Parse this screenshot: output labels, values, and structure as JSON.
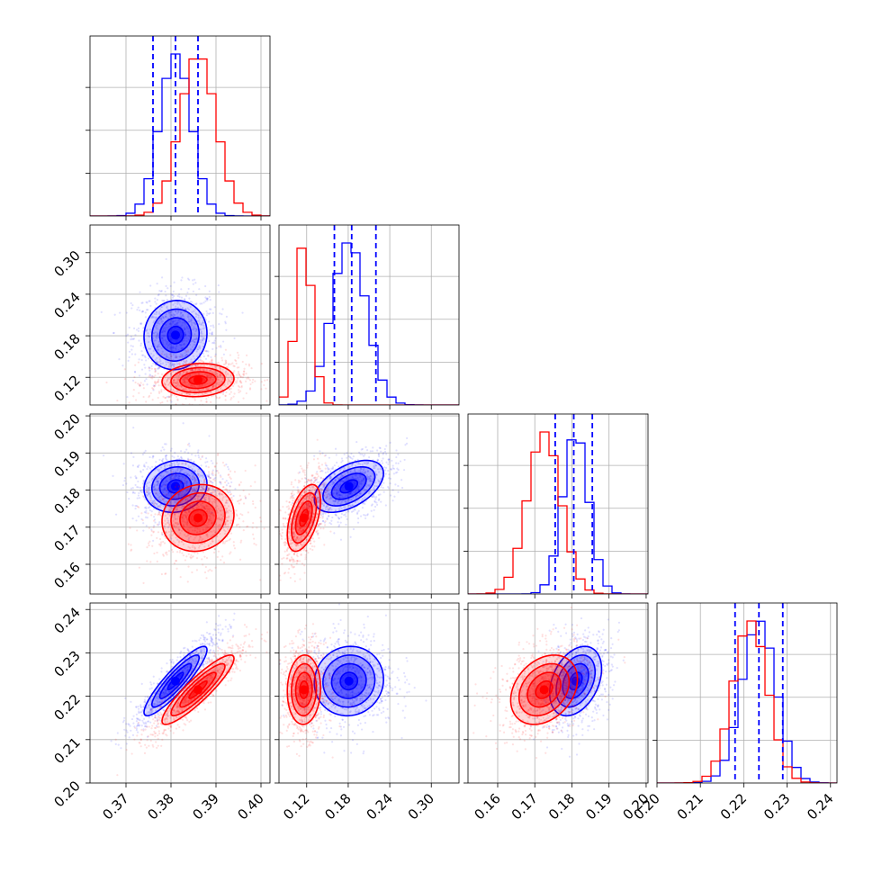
{
  "chart_data": {
    "type": "corner",
    "colors": {
      "series_a": "#0000ff",
      "series_b": "#ff0000",
      "grid": "#b0b0b0",
      "axes": "#000000"
    },
    "grid": true,
    "series": [
      {
        "color": "#0000ff",
        "quantiles": [
          [
            0.376,
            0.381,
            0.386
          ],
          [
            0.16,
            0.185,
            0.22
          ],
          [
            0.1755,
            0.1805,
            0.1855
          ],
          [
            0.218,
            0.2235,
            0.229
          ]
        ],
        "means": [
          0.381,
          0.181,
          0.181,
          0.2235
        ],
        "sigmas": [
          0.0035,
          0.025,
          0.0035,
          0.004
        ],
        "corr": [
          [
            1,
            0.05,
            0.1,
            0.9
          ],
          [
            0.05,
            1,
            0.5,
            0.05
          ],
          [
            0.1,
            0.5,
            1,
            0.35
          ],
          [
            0.9,
            0.05,
            0.35,
            1
          ]
        ]
      },
      {
        "color": "#ff0000",
        "means": [
          0.386,
          0.116,
          0.1725,
          0.2215
        ],
        "sigmas": [
          0.004,
          0.012,
          0.0045,
          0.004
        ],
        "corr": [
          [
            1,
            0.1,
            0.1,
            0.9
          ],
          [
            0.1,
            1,
            0.5,
            0.05
          ],
          [
            0.1,
            0.5,
            1,
            0.3
          ],
          [
            0.9,
            0.05,
            0.3,
            1
          ]
        ]
      }
    ],
    "parameters": [
      {
        "range": [
          0.362,
          0.402
        ],
        "ticks": [
          0.37,
          0.38,
          0.39,
          0.4
        ],
        "tick_labels": [
          "0.37",
          "0.38",
          "0.39",
          "0.40"
        ]
      },
      {
        "range": [
          0.08,
          0.34
        ],
        "ticks": [
          0.12,
          0.18,
          0.24,
          0.3
        ],
        "tick_labels": [
          "0.12",
          "0.18",
          "0.24",
          "0.30"
        ]
      },
      {
        "range": [
          0.152,
          0.2005
        ],
        "ticks": [
          0.16,
          0.17,
          0.18,
          0.19,
          0.2
        ],
        "tick_labels": [
          "0.16",
          "0.17",
          "0.18",
          "0.19",
          "0.20"
        ]
      },
      {
        "range": [
          0.2,
          0.2415
        ],
        "ticks": [
          0.2,
          0.21,
          0.22,
          0.23,
          0.24
        ],
        "tick_labels": [
          "0.20",
          "0.21",
          "0.22",
          "0.23",
          "0.24"
        ]
      }
    ],
    "x_tick_labels": [
      [
        "0.37",
        "0.38",
        "0.39",
        "0.40"
      ],
      [
        "0.12",
        "0.18",
        "0.24",
        "0.30"
      ],
      [
        "0.16",
        "0.17",
        "0.18",
        "0.19",
        "0.20"
      ],
      [
        "0.20",
        "0.21",
        "0.22",
        "0.23",
        "0.24"
      ]
    ],
    "y_tick_labels": [
      [],
      [
        "0.12",
        "0.18",
        "0.24",
        "0.30"
      ],
      [
        "0.16",
        "0.17",
        "0.18",
        "0.19",
        "0.20"
      ],
      [
        "0.20",
        "0.21",
        "0.22",
        "0.23",
        "0.24"
      ]
    ],
    "contour_levels_sigma": [
      0.5,
      1.0,
      1.5,
      2.0
    ]
  }
}
